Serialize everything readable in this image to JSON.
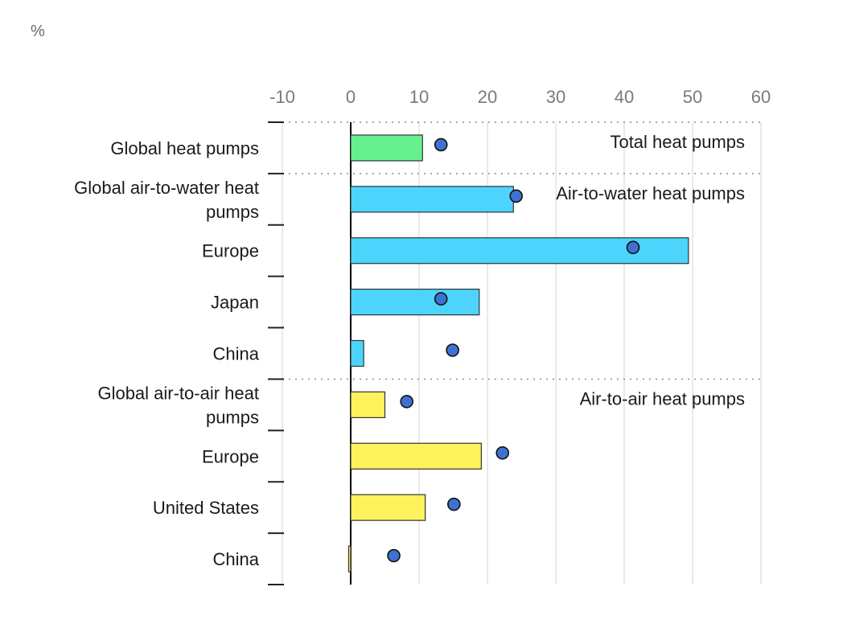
{
  "chart_data": {
    "type": "bar",
    "orientation": "horizontal",
    "unit_label": "%",
    "xlim": [
      -10,
      60
    ],
    "x_ticks": [
      -10,
      0,
      10,
      20,
      30,
      40,
      50,
      60
    ],
    "grid": true,
    "groups": [
      {
        "label": "Total heat pumps",
        "color": "#66f08f",
        "start_index": 0
      },
      {
        "label": "Air-to-water heat pumps",
        "color": "#4cd4fc",
        "start_index": 1
      },
      {
        "label": "Air-to-air heat pumps",
        "color": "#fff35c",
        "start_index": 5
      }
    ],
    "categories": [
      [
        "Global heat pumps"
      ],
      [
        "Global air-to-water heat",
        "pumps"
      ],
      [
        "Europe"
      ],
      [
        "Japan"
      ],
      [
        "China"
      ],
      [
        "Global air-to-air heat",
        "pumps"
      ],
      [
        "Europe"
      ],
      [
        "United States"
      ],
      [
        "China"
      ]
    ],
    "series": [
      {
        "type": "bar",
        "values": [
          10.5,
          23.8,
          49.4,
          18.8,
          1.9,
          5,
          19.1,
          10.9,
          -0.3
        ],
        "colors": [
          "#66f08f",
          "#4cd4fc",
          "#4cd4fc",
          "#4cd4fc",
          "#4cd4fc",
          "#fff35c",
          "#fff35c",
          "#fff35c",
          "#fff35c"
        ]
      },
      {
        "type": "dot",
        "color": "#3f72d0",
        "values": [
          13.2,
          24.2,
          41.3,
          13.2,
          14.9,
          8.2,
          22.2,
          15.1,
          6.3
        ]
      }
    ]
  }
}
